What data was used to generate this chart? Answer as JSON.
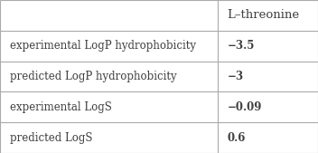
{
  "col_header": "L–threonine",
  "rows": [
    {
      "label": "experimental LogP hydrophobicity",
      "value": "−3.5"
    },
    {
      "label": "predicted LogP hydrophobicity",
      "value": "−3"
    },
    {
      "label": "experimental LogS",
      "value": "−0.09"
    },
    {
      "label": "predicted LogS",
      "value": "0.6"
    }
  ],
  "background_color": "#ffffff",
  "border_color": "#aaaaaa",
  "text_color": "#404040",
  "header_font_size": 9.5,
  "body_font_size": 8.5,
  "col_split": 0.685,
  "fig_width": 3.52,
  "fig_height": 1.69,
  "dpi": 100
}
